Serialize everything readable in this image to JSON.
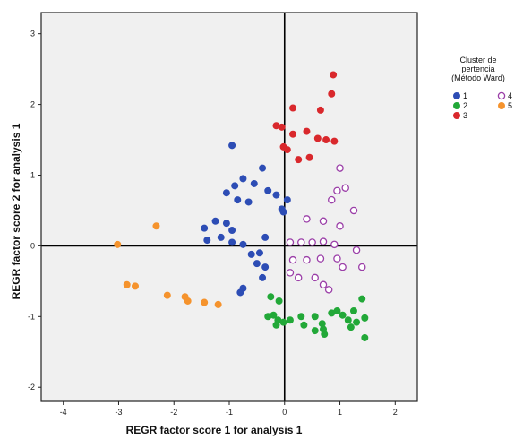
{
  "chart_data": {
    "type": "scatter",
    "title": "",
    "xlabel": "REGR factor score   1 for analysis 1",
    "ylabel": "REGR factor score   2 for analysis 1",
    "xlim": [
      -4.4,
      2.4
    ],
    "ylim": [
      -2.2,
      3.3
    ],
    "xticks": [
      -4,
      -3,
      -2,
      -1,
      0,
      1,
      2
    ],
    "yticks": [
      -2,
      -1,
      0,
      1,
      2,
      3
    ],
    "reference_lines": {
      "x": 0,
      "y": 0
    },
    "background": "#f0f0f0",
    "legend": {
      "title_lines": [
        "Cluster de",
        "pertencia",
        "(Método Ward)"
      ],
      "placement": "right"
    },
    "series": [
      {
        "name": "1",
        "color": "#2d4db5",
        "marker": "filled",
        "points": [
          [
            -0.95,
            1.42
          ],
          [
            -0.75,
            0.95
          ],
          [
            -0.9,
            0.85
          ],
          [
            -0.55,
            0.88
          ],
          [
            -0.4,
            1.1
          ],
          [
            -1.05,
            0.75
          ],
          [
            -0.85,
            0.65
          ],
          [
            -0.65,
            0.62
          ],
          [
            -0.3,
            0.78
          ],
          [
            -0.15,
            0.72
          ],
          [
            -0.05,
            0.52
          ],
          [
            0.05,
            0.65
          ],
          [
            -0.02,
            0.48
          ],
          [
            -1.45,
            0.25
          ],
          [
            -1.25,
            0.35
          ],
          [
            -1.05,
            0.32
          ],
          [
            -0.95,
            0.22
          ],
          [
            -1.15,
            0.12
          ],
          [
            -1.4,
            0.08
          ],
          [
            -0.95,
            0.05
          ],
          [
            -0.75,
            0.02
          ],
          [
            -0.35,
            0.12
          ],
          [
            -0.45,
            -0.1
          ],
          [
            -0.6,
            -0.12
          ],
          [
            -0.5,
            -0.25
          ],
          [
            -0.35,
            -0.3
          ],
          [
            -0.4,
            -0.45
          ],
          [
            -0.75,
            -0.6
          ],
          [
            -0.8,
            -0.66
          ]
        ]
      },
      {
        "name": "2",
        "color": "#22a838",
        "marker": "filled",
        "points": [
          [
            -0.25,
            -0.72
          ],
          [
            -0.1,
            -0.78
          ],
          [
            -0.3,
            -1.0
          ],
          [
            -0.2,
            -0.98
          ],
          [
            -0.12,
            -1.05
          ],
          [
            -0.02,
            -1.08
          ],
          [
            0.1,
            -1.05
          ],
          [
            0.3,
            -1.0
          ],
          [
            0.35,
            -1.12
          ],
          [
            0.55,
            -1.0
          ],
          [
            0.68,
            -1.1
          ],
          [
            0.7,
            -1.18
          ],
          [
            0.72,
            -1.25
          ],
          [
            0.85,
            -0.95
          ],
          [
            0.95,
            -0.92
          ],
          [
            1.05,
            -0.98
          ],
          [
            1.15,
            -1.05
          ],
          [
            1.2,
            -1.15
          ],
          [
            1.3,
            -1.08
          ],
          [
            1.45,
            -1.02
          ],
          [
            1.4,
            -0.75
          ],
          [
            1.25,
            -0.92
          ],
          [
            1.45,
            -1.3
          ],
          [
            -0.15,
            -1.12
          ],
          [
            0.55,
            -1.2
          ]
        ]
      },
      {
        "name": "3",
        "color": "#d9282c",
        "marker": "filled",
        "points": [
          [
            0.88,
            2.42
          ],
          [
            0.85,
            2.15
          ],
          [
            0.65,
            1.92
          ],
          [
            0.15,
            1.95
          ],
          [
            -0.15,
            1.7
          ],
          [
            -0.05,
            1.68
          ],
          [
            0.15,
            1.58
          ],
          [
            0.4,
            1.62
          ],
          [
            0.75,
            1.5
          ],
          [
            0.9,
            1.48
          ],
          [
            -0.02,
            1.4
          ],
          [
            0.05,
            1.36
          ],
          [
            0.25,
            1.22
          ],
          [
            0.45,
            1.25
          ],
          [
            0.6,
            1.52
          ]
        ]
      },
      {
        "name": "4",
        "color": "#9b3fa8",
        "marker": "hollow",
        "points": [
          [
            1.0,
            1.1
          ],
          [
            0.95,
            0.78
          ],
          [
            1.1,
            0.82
          ],
          [
            1.25,
            0.5
          ],
          [
            0.85,
            0.65
          ],
          [
            1.0,
            0.28
          ],
          [
            0.7,
            0.35
          ],
          [
            0.4,
            0.38
          ],
          [
            0.1,
            0.05
          ],
          [
            0.3,
            0.05
          ],
          [
            0.5,
            0.05
          ],
          [
            0.7,
            0.06
          ],
          [
            0.9,
            0.02
          ],
          [
            1.3,
            -0.06
          ],
          [
            0.15,
            -0.2
          ],
          [
            0.4,
            -0.2
          ],
          [
            0.65,
            -0.18
          ],
          [
            0.95,
            -0.18
          ],
          [
            0.25,
            -0.45
          ],
          [
            0.55,
            -0.45
          ],
          [
            0.7,
            -0.55
          ],
          [
            1.4,
            -0.3
          ],
          [
            0.1,
            -0.38
          ],
          [
            1.05,
            -0.3
          ],
          [
            0.8,
            -0.62
          ]
        ]
      },
      {
        "name": "5",
        "color": "#f5932d",
        "marker": "filled",
        "points": [
          [
            -3.02,
            0.02
          ],
          [
            -2.32,
            0.28
          ],
          [
            -2.85,
            -0.55
          ],
          [
            -2.7,
            -0.57
          ],
          [
            -2.12,
            -0.7
          ],
          [
            -1.8,
            -0.72
          ],
          [
            -1.75,
            -0.78
          ],
          [
            -1.45,
            -0.8
          ],
          [
            -1.2,
            -0.83
          ]
        ]
      }
    ]
  }
}
